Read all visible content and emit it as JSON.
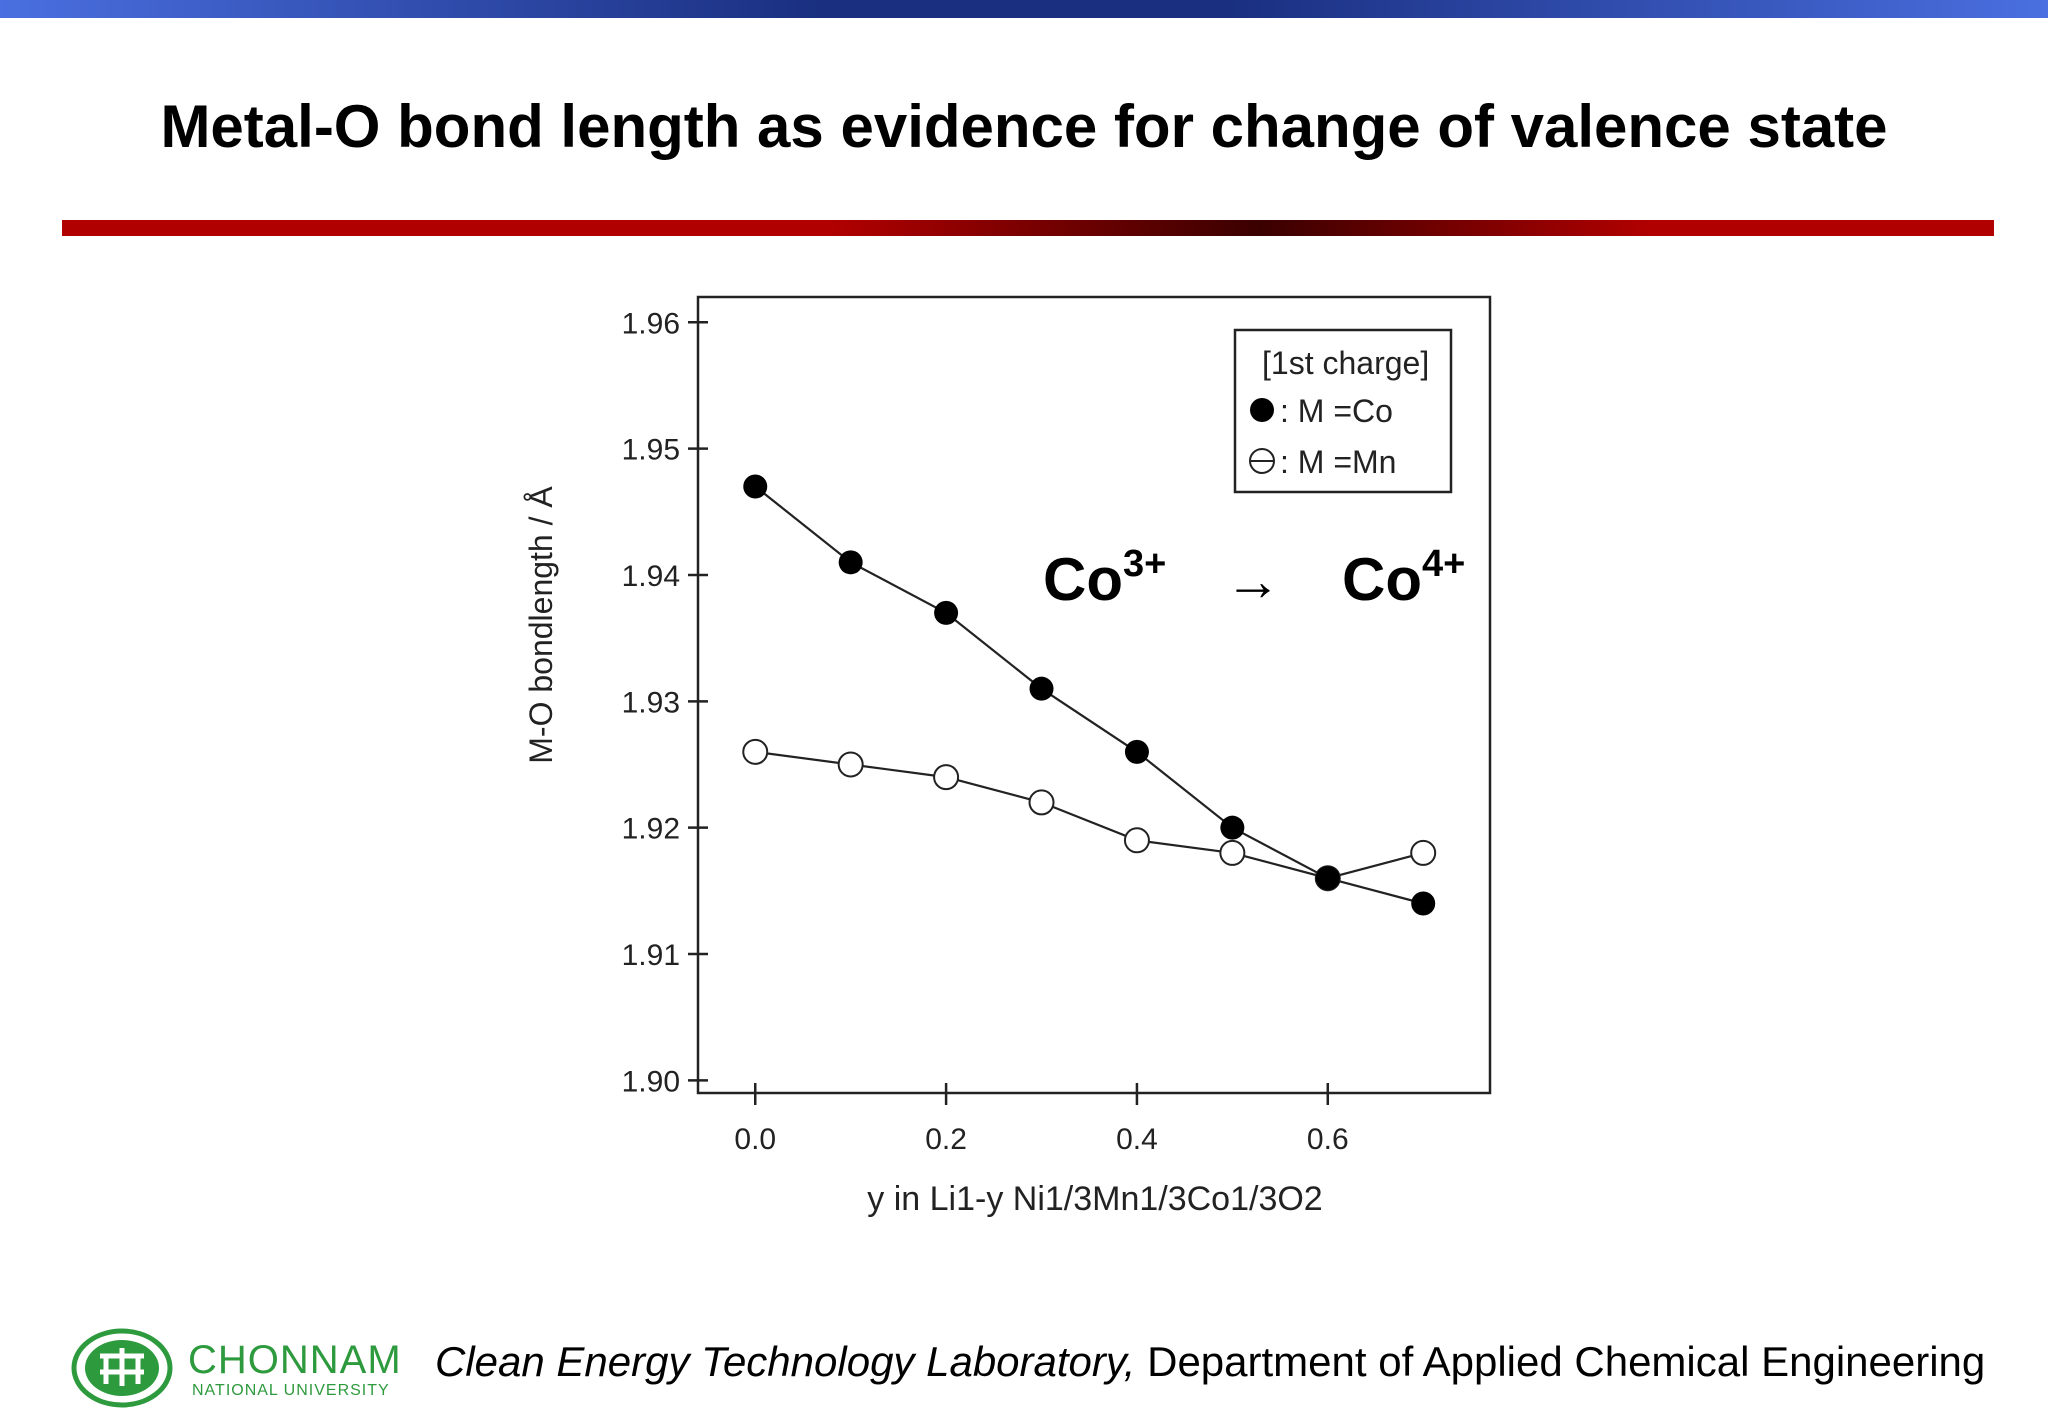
{
  "slide": {
    "title": "Metal-O bond length as evidence for change of valence state",
    "annotation": {
      "from_base": "Co",
      "from_sup": "3+",
      "arrow": "→",
      "to_base": "Co",
      "to_sup": "4+"
    }
  },
  "footer": {
    "logo_name": "CHONNAM",
    "logo_sub": "NATIONAL UNIVERSITY",
    "lab": "Clean Energy Technology Laboratory,",
    "department": " Department of Applied Chemical Engineering"
  },
  "chart_data": {
    "type": "line",
    "ylabel": "M-O bondlength / Å",
    "xlabel": "y in Li1-y Ni1/3Mn1/3Co1/3O2",
    "legend": {
      "title": "[1st charge]",
      "position": "top-right",
      "entries": [
        ": M =Co",
        ": M =Mn"
      ]
    },
    "xlim": [
      -0.06,
      0.77
    ],
    "ylim": [
      1.899,
      1.962
    ],
    "x_ticks": [
      "0.0",
      "0.2",
      "0.4",
      "0.6"
    ],
    "y_ticks": [
      "1.90",
      "1.91",
      "1.92",
      "1.93",
      "1.94",
      "1.95",
      "1.96"
    ],
    "grid": false,
    "x": [
      0.0,
      0.1,
      0.2,
      0.3,
      0.4,
      0.5,
      0.6,
      0.7
    ],
    "series": [
      {
        "name": "M =Co",
        "marker": "filled-circle",
        "values": [
          1.947,
          1.941,
          1.937,
          1.931,
          1.926,
          1.92,
          1.916,
          1.914
        ]
      },
      {
        "name": "M =Mn",
        "marker": "open-circle",
        "values": [
          1.926,
          1.925,
          1.924,
          1.922,
          1.919,
          1.918,
          1.916,
          1.918
        ]
      }
    ]
  }
}
